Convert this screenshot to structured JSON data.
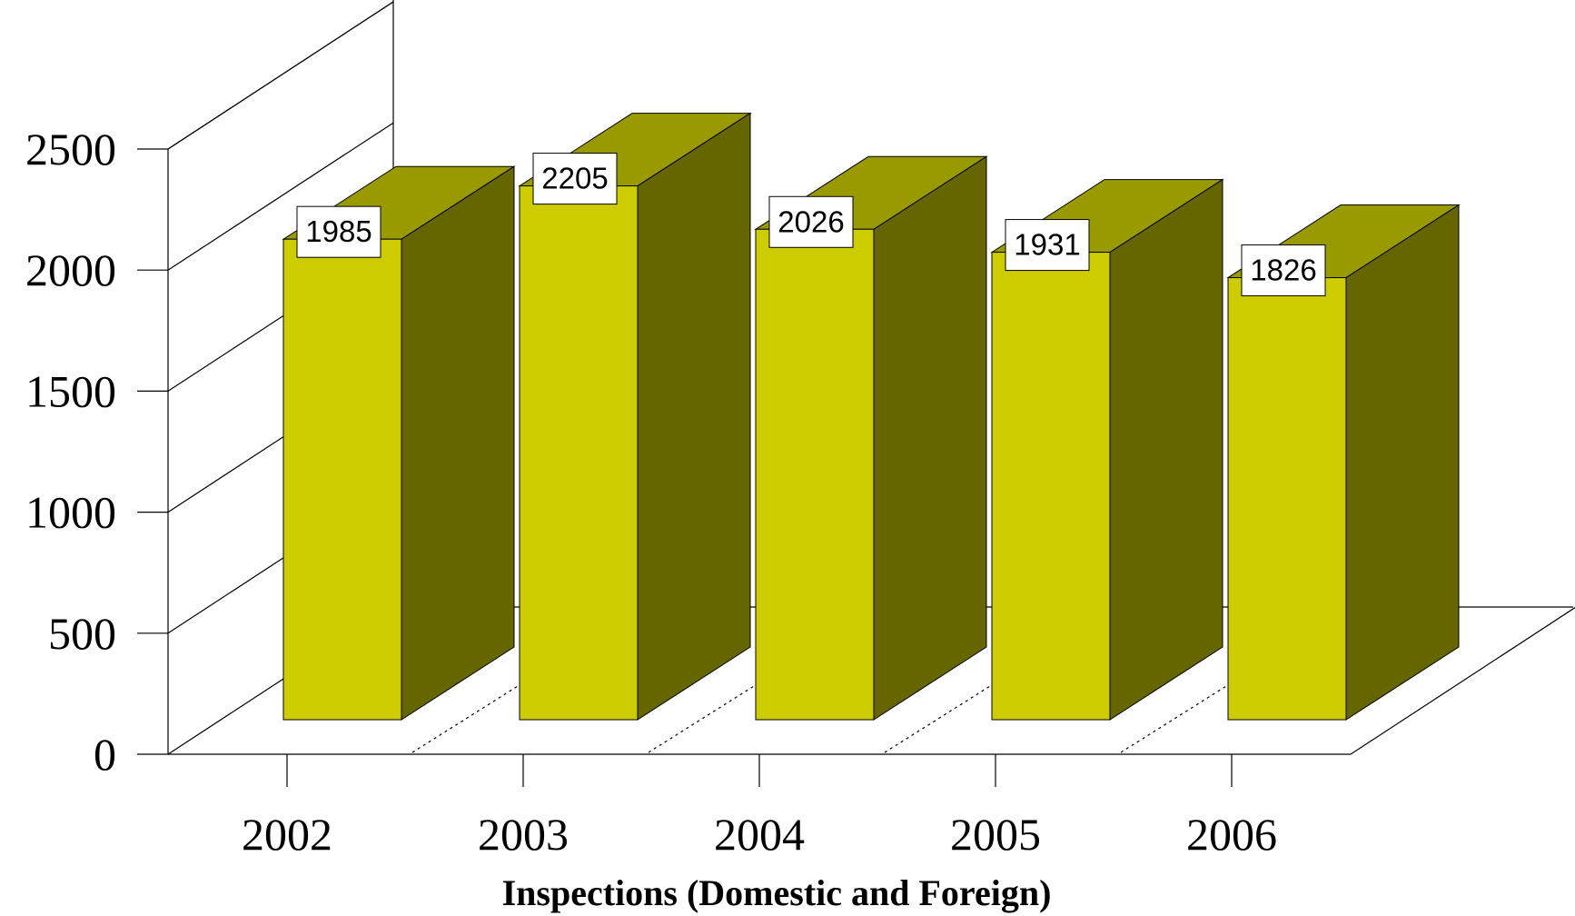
{
  "chart_data": {
    "type": "bar",
    "style": "3d",
    "title": "",
    "xlabel": "Inspections (Domestic and Foreign)",
    "ylabel": "",
    "categories": [
      "2002",
      "2003",
      "2004",
      "2005",
      "2006"
    ],
    "series": [
      {
        "values": [
          1985,
          2205,
          2026,
          1931,
          1826
        ]
      }
    ],
    "data_labels": [
      "1985",
      "2205",
      "2026",
      "1931",
      "1826"
    ],
    "ylim": [
      0,
      2500
    ],
    "yticks": [
      0,
      500,
      1000,
      1500,
      2000,
      2500
    ],
    "ytick_labels": [
      "0",
      "500",
      "1000",
      "1500",
      "2000",
      "2500"
    ],
    "grid": true,
    "legend": "none",
    "colors": {
      "bar_front": "#cccc00",
      "bar_top": "#999900",
      "bar_side": "#666600",
      "grid": "#000000",
      "background": "#ffffff"
    }
  }
}
